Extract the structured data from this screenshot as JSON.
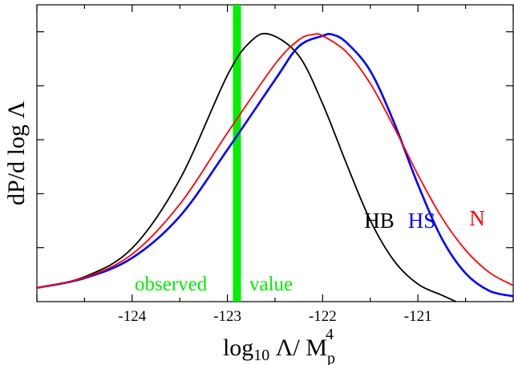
{
  "chart_data": {
    "type": "line",
    "title": "",
    "xlabel": {
      "main": "log",
      "sub": "10",
      "mid": " Λ/ M",
      "sub2": "p",
      "sup": "4"
    },
    "ylabel": "dP/d log Λ",
    "xlim": [
      -125.0,
      -120.0
    ],
    "ylim": [
      0.0,
      1.1
    ],
    "x_ticks": [
      -124,
      -123,
      -122,
      -121
    ],
    "x_tick_labels": [
      "-124",
      "-123",
      "-122",
      "-121"
    ],
    "y_ticks": [
      0.2,
      0.4,
      0.6,
      0.8,
      1.0
    ],
    "grid": false,
    "series": [
      {
        "name": "HB",
        "color": "#000000",
        "x": [
          -125.0,
          -124.5,
          -124.0,
          -123.5,
          -123.0,
          -122.75,
          -122.55,
          -122.25,
          -122.0,
          -121.75,
          -121.5,
          -121.25,
          -121.0,
          -120.75,
          -120.6
        ],
        "y": [
          0.051,
          0.092,
          0.198,
          0.453,
          0.839,
          0.966,
          0.99,
          0.911,
          0.733,
          0.511,
          0.301,
          0.151,
          0.065,
          0.024,
          0.0
        ]
      },
      {
        "name": "HS",
        "color": "#0000ff",
        "x": [
          -125.0,
          -124.5,
          -124.0,
          -123.5,
          -123.0,
          -122.5,
          -122.25,
          -122.0,
          -121.9,
          -121.75,
          -121.5,
          -121.25,
          -121.0,
          -120.75,
          -120.5,
          -120.25,
          -120.0
        ],
        "y": [
          0.051,
          0.087,
          0.162,
          0.316,
          0.563,
          0.822,
          0.946,
          0.985,
          0.99,
          0.96,
          0.855,
          0.663,
          0.434,
          0.234,
          0.105,
          0.04,
          0.02
        ]
      },
      {
        "name": "N",
        "color": "#ff0000",
        "x": [
          -125.0,
          -124.5,
          -124.0,
          -123.5,
          -123.0,
          -122.5,
          -122.25,
          -122.1,
          -122.0,
          -121.75,
          -121.5,
          -121.25,
          -121.0,
          -120.75,
          -120.5,
          -120.25,
          -120.0
        ],
        "y": [
          0.051,
          0.089,
          0.176,
          0.361,
          0.625,
          0.88,
          0.97,
          0.99,
          0.985,
          0.925,
          0.808,
          0.646,
          0.47,
          0.312,
          0.191,
          0.108,
          0.06
        ]
      }
    ],
    "annotations": [
      {
        "type": "vertical-band",
        "x": -122.9,
        "color": "#00ee00",
        "label_left": "observed",
        "label_right": "value"
      }
    ]
  }
}
